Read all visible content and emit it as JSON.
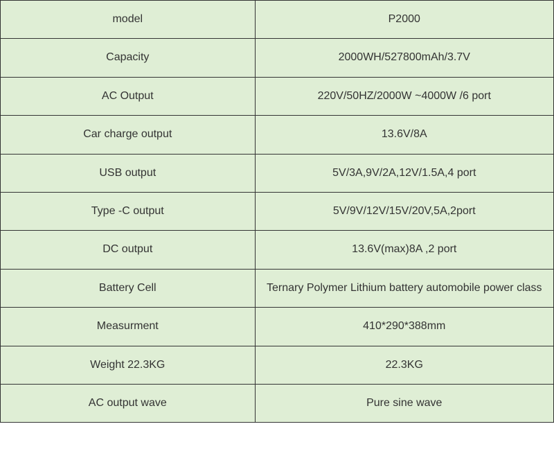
{
  "table": {
    "background_color": "#dfeed5",
    "border_color": "#333333",
    "text_color": "#333333",
    "font_size": 16,
    "rows": [
      {
        "label": "model",
        "value": "P2000"
      },
      {
        "label": "Capacity",
        "value": "2000WH/527800mAh/3.7V"
      },
      {
        "label": "AC Output",
        "value": "220V/50HZ/2000W ~4000W /6 port"
      },
      {
        "label": "Car charge output",
        "value": "13.6V/8A"
      },
      {
        "label": "USB output",
        "value": "5V/3A,9V/2A,12V/1.5A,4 port"
      },
      {
        "label": "Type -C output",
        "value": "5V/9V/12V/15V/20V,5A,2port"
      },
      {
        "label": "DC output",
        "value": "13.6V(max)8A ,2 port"
      },
      {
        "label": "Battery Cell",
        "value": "Ternary Polymer Lithium battery automobile power class"
      },
      {
        "label": "Measurment",
        "value": "410*290*388mm"
      },
      {
        "label": "Weight 22.3KG",
        "value": "22.3KG"
      },
      {
        "label": "AC output wave",
        "value": "Pure sine wave"
      }
    ]
  }
}
